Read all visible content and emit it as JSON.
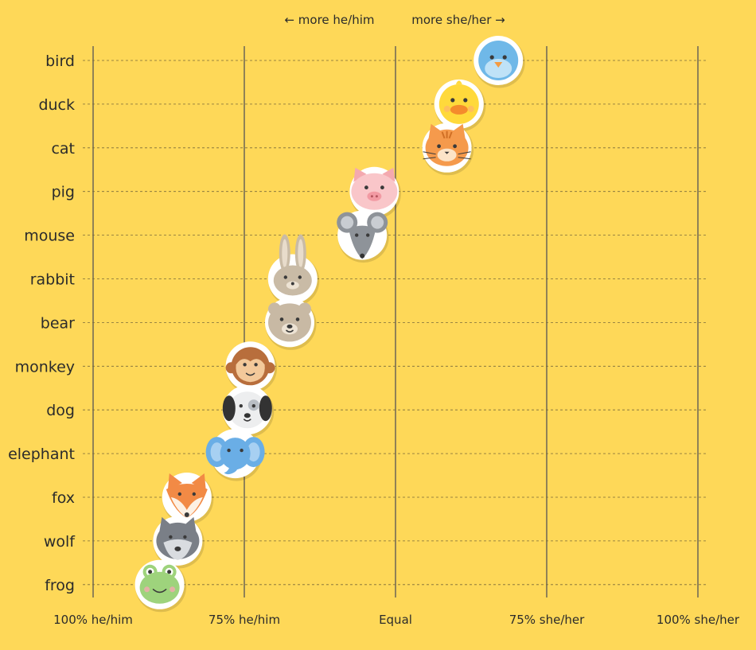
{
  "chart_data": {
    "type": "scatter",
    "title": "",
    "xlabel": "",
    "ylabel": "",
    "direction_labels": {
      "left": "← more he/him",
      "right": "more she/her →"
    },
    "x_ticks": [
      {
        "value": -100,
        "label": "100% he/him"
      },
      {
        "value": -50,
        "label": "75% he/him"
      },
      {
        "value": 0,
        "label": "Equal"
      },
      {
        "value": 50,
        "label": "75% she/her"
      },
      {
        "value": 100,
        "label": "100% she/her"
      }
    ],
    "xlim": [
      -100,
      100
    ],
    "grid": {
      "vertical": true,
      "horizontal_dashed": true
    },
    "categories": [
      "bird",
      "duck",
      "cat",
      "pig",
      "mouse",
      "rabbit",
      "bear",
      "monkey",
      "dog",
      "elephant",
      "fox",
      "wolf",
      "frog"
    ],
    "values": [
      34,
      21,
      17,
      -7,
      -11,
      -34,
      -35,
      -48,
      -49,
      -53,
      -69,
      -72,
      -78
    ],
    "colors": {
      "background": "#FED858",
      "bird": "#6FB8E8",
      "duck": "#FFD93B",
      "cat": "#F59A4C",
      "pig": "#F9C6C9",
      "mouse": "#8E9399",
      "rabbit": "#C9BBA6",
      "bear": "#C8B9A4",
      "monkey": "#B86E3C",
      "dog": "#B9BEC4",
      "elephant": "#6AAEE6",
      "fox": "#F28A45",
      "wolf": "#7A7F87",
      "frog": "#9ED37C"
    },
    "icons": [
      "bird-face",
      "duck-face",
      "cat-face",
      "pig-face",
      "mouse-face",
      "rabbit-face",
      "bear-face",
      "monkey-face",
      "dog-face",
      "elephant-face",
      "fox-face",
      "wolf-face",
      "frog-face"
    ]
  }
}
